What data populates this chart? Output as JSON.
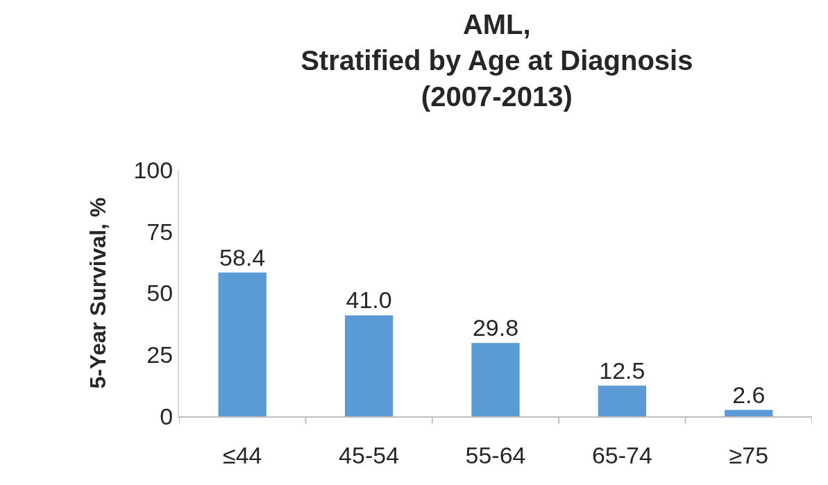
{
  "chart_data": {
    "type": "bar",
    "title": "AML,\nStratified by Age at Diagnosis\n(2007-2013)",
    "ylabel": "5-Year Survival, %",
    "categories": [
      "≤44",
      "45-54",
      "55-64",
      "65-74",
      "≥75"
    ],
    "values": [
      58.4,
      41.0,
      29.8,
      12.5,
      2.6
    ],
    "value_labels": [
      "58.4",
      "41.0",
      "29.8",
      "12.5",
      "2.6"
    ],
    "color": "#5b9bd5",
    "ylim": [
      0,
      100
    ],
    "yticks": [
      0,
      25,
      50,
      75,
      100
    ]
  }
}
